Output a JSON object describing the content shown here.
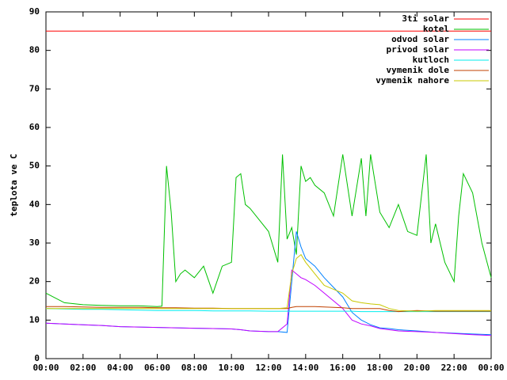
{
  "chart_data": {
    "type": "line",
    "y_label": "teplota ve C",
    "x": [
      0,
      1,
      2,
      3,
      4,
      5,
      6,
      7,
      8,
      9,
      10,
      10.5,
      11,
      12,
      12.5,
      13,
      13.25,
      13.5,
      13.75,
      14,
      14.5,
      15,
      15.5,
      16,
      16.5,
      17,
      17.5,
      18,
      18.5,
      19,
      20,
      21,
      22,
      23,
      24
    ],
    "xlim": [
      0,
      24
    ],
    "xticks": [
      {
        "value": 0,
        "label": "00:00"
      },
      {
        "value": 2,
        "label": "02:00"
      },
      {
        "value": 4,
        "label": "04:00"
      },
      {
        "value": 6,
        "label": "06:00"
      },
      {
        "value": 8,
        "label": "08:00"
      },
      {
        "value": 10,
        "label": "10:00"
      },
      {
        "value": 12,
        "label": "12:00"
      },
      {
        "value": 14,
        "label": "14:00"
      },
      {
        "value": 16,
        "label": "16:00"
      },
      {
        "value": 18,
        "label": "18:00"
      },
      {
        "value": 20,
        "label": "20:00"
      },
      {
        "value": 22,
        "label": "22:00"
      },
      {
        "value": 24,
        "label": "00:00"
      }
    ],
    "ylim": [
      0,
      90
    ],
    "yticks": [
      0,
      10,
      20,
      30,
      40,
      50,
      60,
      70,
      80,
      90
    ],
    "grid": false,
    "legend": "top-right",
    "series": [
      {
        "name": "3ti solar",
        "color": "#ff0000",
        "x": [
          0,
          24
        ],
        "values": [
          85,
          85
        ]
      },
      {
        "name": "kotel",
        "color": "#00c000",
        "x": [
          0,
          1,
          2,
          3,
          4,
          5,
          6,
          6.25,
          6.5,
          6.75,
          7,
          7.25,
          7.5,
          8,
          8.5,
          9,
          9.5,
          10,
          10.25,
          10.5,
          10.75,
          11,
          11.5,
          12,
          12.5,
          12.75,
          13,
          13.25,
          13.5,
          13.75,
          14,
          14.25,
          14.5,
          15,
          15.5,
          16,
          16.5,
          17,
          17.25,
          17.5,
          18,
          18.5,
          19,
          19.5,
          20,
          20.5,
          20.75,
          21,
          21.5,
          22,
          22.25,
          22.5,
          23,
          23.5,
          24
        ],
        "values": [
          17,
          14.5,
          14,
          13.8,
          13.7,
          13.7,
          13.5,
          13.6,
          50,
          38,
          20,
          22,
          23,
          21,
          24,
          17,
          24,
          25,
          47,
          48,
          40,
          39,
          36,
          33,
          25,
          53,
          31,
          34,
          27,
          50,
          46,
          47,
          45,
          43,
          37,
          53,
          37,
          52,
          37,
          53,
          38,
          34,
          40,
          33,
          32,
          53,
          30,
          35,
          25,
          20,
          37,
          48,
          43,
          30,
          21
        ]
      },
      {
        "name": "odvod solar",
        "color": "#0080ff",
        "values": [
          9.2,
          9,
          8.8,
          8.6,
          8.3,
          8.2,
          8.1,
          8,
          7.9,
          7.8,
          7.7,
          7.5,
          7.2,
          7,
          7,
          6.8,
          20,
          33,
          29,
          26,
          24,
          21,
          18.5,
          16,
          12,
          10,
          8.8,
          8,
          7.8,
          7.5,
          7.2,
          6.8,
          6.6,
          6.4,
          6.2
        ]
      },
      {
        "name": "privod solar",
        "color": "#c000ff",
        "values": [
          9.2,
          9,
          8.8,
          8.6,
          8.3,
          8.2,
          8.1,
          8,
          7.9,
          7.8,
          7.7,
          7.5,
          7.2,
          7,
          7,
          9,
          23,
          22,
          21,
          20.5,
          19,
          17,
          15,
          13,
          10,
          9,
          8.5,
          7.8,
          7.5,
          7.2,
          7,
          6.8,
          6.5,
          6.2,
          6
        ]
      },
      {
        "name": "kutloch",
        "color": "#00eeee",
        "values": [
          13,
          12.9,
          12.8,
          12.8,
          12.7,
          12.6,
          12.5,
          12.5,
          12.5,
          12.4,
          12.4,
          12.4,
          12.4,
          12.3,
          12.3,
          12.3,
          12.3,
          12.3,
          12.3,
          12.3,
          12.3,
          12.3,
          12.3,
          12.3,
          12.3,
          12.2,
          12.2,
          12.2,
          12.2,
          12.2,
          12.2,
          12.2,
          12.2,
          12.2,
          12.2
        ]
      },
      {
        "name": "vymenik dole",
        "color": "#c04000",
        "values": [
          13.5,
          13.5,
          13.4,
          13.3,
          13.3,
          13.3,
          13.2,
          13.2,
          13.1,
          13.1,
          13,
          13,
          13,
          13,
          13,
          13,
          13.3,
          13.5,
          13.5,
          13.5,
          13.5,
          13.4,
          13.3,
          13.2,
          13,
          13,
          13,
          13,
          12.5,
          12.2,
          12.5,
          12.3,
          12.3,
          12.3,
          12.3
        ]
      },
      {
        "name": "vymenik nahore",
        "color": "#c8c800",
        "values": [
          13,
          13,
          13,
          13,
          13,
          13,
          13,
          13,
          13,
          13,
          13,
          13,
          13,
          13,
          13,
          13.2,
          22,
          26,
          27,
          25,
          22,
          19,
          18,
          17,
          15,
          14.5,
          14.2,
          14,
          13,
          12.5,
          12.3,
          12.5,
          12.5,
          12.5,
          12.5
        ]
      }
    ]
  }
}
